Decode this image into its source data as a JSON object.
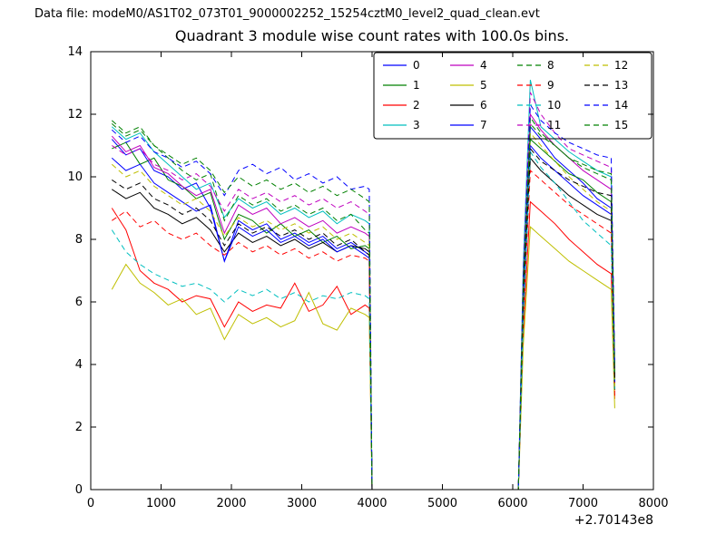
{
  "header": {
    "data_file_label": "Data file: modeM0/AS1T02_073T01_9000002252_15254cztM0_level2_quad_clean.evt"
  },
  "colors": {
    "background": "#ffffff",
    "axes": "#000000",
    "legend_border": "#000000"
  },
  "chart_data": {
    "type": "line",
    "title": "Quadrant 3 module wise count rates with 100.0s bins.",
    "xlabel": "",
    "ylabel": "",
    "xlim": [
      0,
      8000
    ],
    "ylim": [
      0,
      14
    ],
    "xticks": [
      0,
      1000,
      2000,
      3000,
      4000,
      5000,
      6000,
      7000,
      8000
    ],
    "yticks": [
      0,
      2,
      4,
      6,
      8,
      10,
      12,
      14
    ],
    "x_offset_label": "+2.70143e8",
    "grid": false,
    "legend_position": "upper center-right",
    "legend_columns": 4,
    "x": [
      300,
      500,
      700,
      900,
      1100,
      1300,
      1500,
      1700,
      1900,
      2100,
      2300,
      2500,
      2700,
      2900,
      3100,
      3300,
      3500,
      3700,
      3900,
      3960,
      4000,
      6080,
      6150,
      6250,
      6400,
      6600,
      6800,
      7000,
      7200,
      7400,
      7450
    ],
    "series": [
      {
        "name": "0",
        "color": "#0000ff",
        "dash": "solid",
        "values": [
          11.2,
          10.7,
          10.9,
          10.2,
          10.0,
          9.6,
          9.8,
          9.0,
          7.3,
          8.6,
          8.3,
          8.5,
          8.0,
          8.2,
          7.9,
          8.1,
          7.7,
          7.9,
          7.6,
          7.5,
          0,
          0,
          6.4,
          11.6,
          11.2,
          10.6,
          10.2,
          9.8,
          9.3,
          9.0,
          3.4
        ]
      },
      {
        "name": "1",
        "color": "#008000",
        "dash": "solid",
        "values": [
          10.9,
          11.1,
          10.4,
          10.6,
          9.9,
          9.7,
          9.3,
          9.5,
          8.0,
          8.8,
          8.6,
          8.2,
          8.5,
          8.1,
          8.3,
          7.9,
          8.1,
          7.7,
          7.8,
          7.7,
          0,
          0,
          6.2,
          11.2,
          10.9,
          10.5,
          10.1,
          9.9,
          9.5,
          9.2,
          3.5
        ]
      },
      {
        "name": "2",
        "color": "#ff0000",
        "dash": "solid",
        "values": [
          9.0,
          8.3,
          7.0,
          6.6,
          6.4,
          6.0,
          6.2,
          6.1,
          5.2,
          6.0,
          5.7,
          5.9,
          5.8,
          6.6,
          5.7,
          5.9,
          6.5,
          5.6,
          5.9,
          5.8,
          0,
          0,
          5.0,
          9.2,
          8.9,
          8.5,
          8.0,
          7.6,
          7.2,
          6.9,
          2.9
        ]
      },
      {
        "name": "3",
        "color": "#00bfbf",
        "dash": "solid",
        "values": [
          11.6,
          11.2,
          11.4,
          10.8,
          10.4,
          10.0,
          9.6,
          9.8,
          8.7,
          9.3,
          9.0,
          9.2,
          8.8,
          9.0,
          8.7,
          8.9,
          8.5,
          8.8,
          8.6,
          8.5,
          0,
          0,
          7.2,
          13.1,
          11.6,
          11.2,
          10.8,
          10.5,
          10.2,
          10.0,
          3.8
        ]
      },
      {
        "name": "4",
        "color": "#bf00bf",
        "dash": "solid",
        "values": [
          11.3,
          10.8,
          11.0,
          10.3,
          10.1,
          9.7,
          9.4,
          9.6,
          8.2,
          9.1,
          8.8,
          9.0,
          8.5,
          8.7,
          8.4,
          8.6,
          8.2,
          8.4,
          8.2,
          8.1,
          0,
          0,
          6.6,
          12.0,
          11.5,
          11.0,
          10.6,
          10.2,
          9.9,
          9.6,
          3.6
        ]
      },
      {
        "name": "5",
        "color": "#bfbf00",
        "dash": "solid",
        "values": [
          6.4,
          7.2,
          6.6,
          6.3,
          5.9,
          6.1,
          5.6,
          5.8,
          4.8,
          5.6,
          5.3,
          5.5,
          5.2,
          5.4,
          6.3,
          5.3,
          5.1,
          5.8,
          5.6,
          5.5,
          0,
          0,
          4.6,
          8.4,
          8.1,
          7.7,
          7.3,
          7.0,
          6.7,
          6.4,
          2.6
        ]
      },
      {
        "name": "6",
        "color": "#000000",
        "dash": "solid",
        "values": [
          9.6,
          9.3,
          9.5,
          9.0,
          8.8,
          8.5,
          8.7,
          8.3,
          7.6,
          8.2,
          7.9,
          8.1,
          7.8,
          8.0,
          7.7,
          7.9,
          7.6,
          7.8,
          7.7,
          7.6,
          0,
          0,
          5.8,
          10.6,
          10.2,
          9.8,
          9.4,
          9.1,
          8.8,
          8.6,
          3.2
        ]
      },
      {
        "name": "7",
        "color": "#0000ff",
        "dash": "solid",
        "values": [
          10.6,
          10.2,
          10.4,
          9.8,
          9.5,
          9.2,
          8.9,
          9.1,
          7.3,
          8.4,
          8.1,
          8.3,
          7.9,
          8.1,
          7.8,
          8.0,
          7.6,
          7.8,
          7.5,
          7.4,
          0,
          0,
          6.0,
          11.0,
          10.6,
          10.2,
          9.8,
          9.4,
          9.1,
          8.8,
          3.3
        ]
      },
      {
        "name": "8",
        "color": "#008000",
        "dash": "dashed",
        "values": [
          11.8,
          11.4,
          11.6,
          11.0,
          10.6,
          10.2,
          9.9,
          10.1,
          8.6,
          9.4,
          9.1,
          9.3,
          8.9,
          9.1,
          8.8,
          9.0,
          8.6,
          8.8,
          8.3,
          8.2,
          0,
          0,
          6.5,
          11.9,
          11.4,
          11.0,
          10.6,
          10.3,
          10.1,
          9.9,
          3.7
        ]
      },
      {
        "name": "9",
        "color": "#ff0000",
        "dash": "dashed",
        "values": [
          8.6,
          8.9,
          8.4,
          8.6,
          8.2,
          8.0,
          8.2,
          7.8,
          7.5,
          7.9,
          7.6,
          7.8,
          7.5,
          7.7,
          7.4,
          7.6,
          7.3,
          7.5,
          7.4,
          7.3,
          0,
          0,
          5.6,
          10.2,
          9.9,
          9.5,
          9.1,
          8.8,
          8.5,
          8.2,
          3.0
        ]
      },
      {
        "name": "10",
        "color": "#00bfbf",
        "dash": "dashed",
        "values": [
          8.3,
          7.6,
          7.2,
          6.9,
          6.7,
          6.5,
          6.6,
          6.4,
          6.0,
          6.4,
          6.2,
          6.4,
          6.1,
          6.3,
          6.0,
          6.2,
          6.1,
          6.3,
          6.2,
          6.1,
          0,
          0,
          5.4,
          10.8,
          10.3,
          9.8,
          9.2,
          8.6,
          8.2,
          7.8,
          3.1
        ]
      },
      {
        "name": "11",
        "color": "#bf00bf",
        "dash": "dashed",
        "values": [
          11.0,
          10.7,
          10.9,
          10.4,
          10.2,
          9.9,
          10.1,
          9.7,
          8.9,
          9.6,
          9.3,
          9.5,
          9.2,
          9.4,
          9.1,
          9.3,
          9.0,
          9.2,
          8.9,
          8.8,
          0,
          0,
          7.0,
          12.7,
          12.0,
          11.4,
          10.9,
          10.7,
          10.5,
          10.3,
          3.9
        ]
      },
      {
        "name": "12",
        "color": "#bfbf00",
        "dash": "dashed",
        "values": [
          10.4,
          10.0,
          10.2,
          9.7,
          9.4,
          9.1,
          9.3,
          8.9,
          8.1,
          8.7,
          8.4,
          8.6,
          8.3,
          8.5,
          8.2,
          8.4,
          8.0,
          8.2,
          7.9,
          7.8,
          0,
          0,
          6.3,
          11.4,
          11.0,
          10.5,
          10.0,
          9.6,
          9.2,
          8.9,
          3.3
        ]
      },
      {
        "name": "13",
        "color": "#000000",
        "dash": "dashed",
        "values": [
          9.9,
          9.6,
          9.8,
          9.3,
          9.1,
          8.8,
          9.0,
          8.6,
          7.8,
          8.5,
          8.2,
          8.4,
          8.1,
          8.3,
          8.0,
          8.2,
          7.8,
          8.0,
          7.6,
          7.5,
          0,
          0,
          6.0,
          10.9,
          10.5,
          10.2,
          9.9,
          9.7,
          9.5,
          9.4,
          3.5
        ]
      },
      {
        "name": "14",
        "color": "#0000ff",
        "dash": "dashed",
        "values": [
          11.5,
          11.1,
          11.3,
          10.8,
          10.6,
          10.3,
          10.5,
          10.1,
          9.4,
          10.2,
          10.4,
          10.1,
          10.3,
          9.9,
          10.1,
          9.8,
          10.0,
          9.6,
          9.7,
          9.6,
          0,
          0,
          6.8,
          12.3,
          11.8,
          11.4,
          11.1,
          10.9,
          10.7,
          10.6,
          4.0
        ]
      },
      {
        "name": "15",
        "color": "#008000",
        "dash": "dashed",
        "values": [
          11.7,
          11.3,
          11.5,
          11.0,
          10.7,
          10.4,
          10.6,
          10.2,
          9.5,
          10.0,
          9.7,
          9.9,
          9.6,
          9.8,
          9.5,
          9.7,
          9.4,
          9.6,
          9.3,
          9.2,
          0,
          0,
          6.6,
          11.7,
          11.3,
          11.0,
          10.6,
          10.4,
          10.2,
          10.1,
          3.8
        ]
      }
    ]
  }
}
